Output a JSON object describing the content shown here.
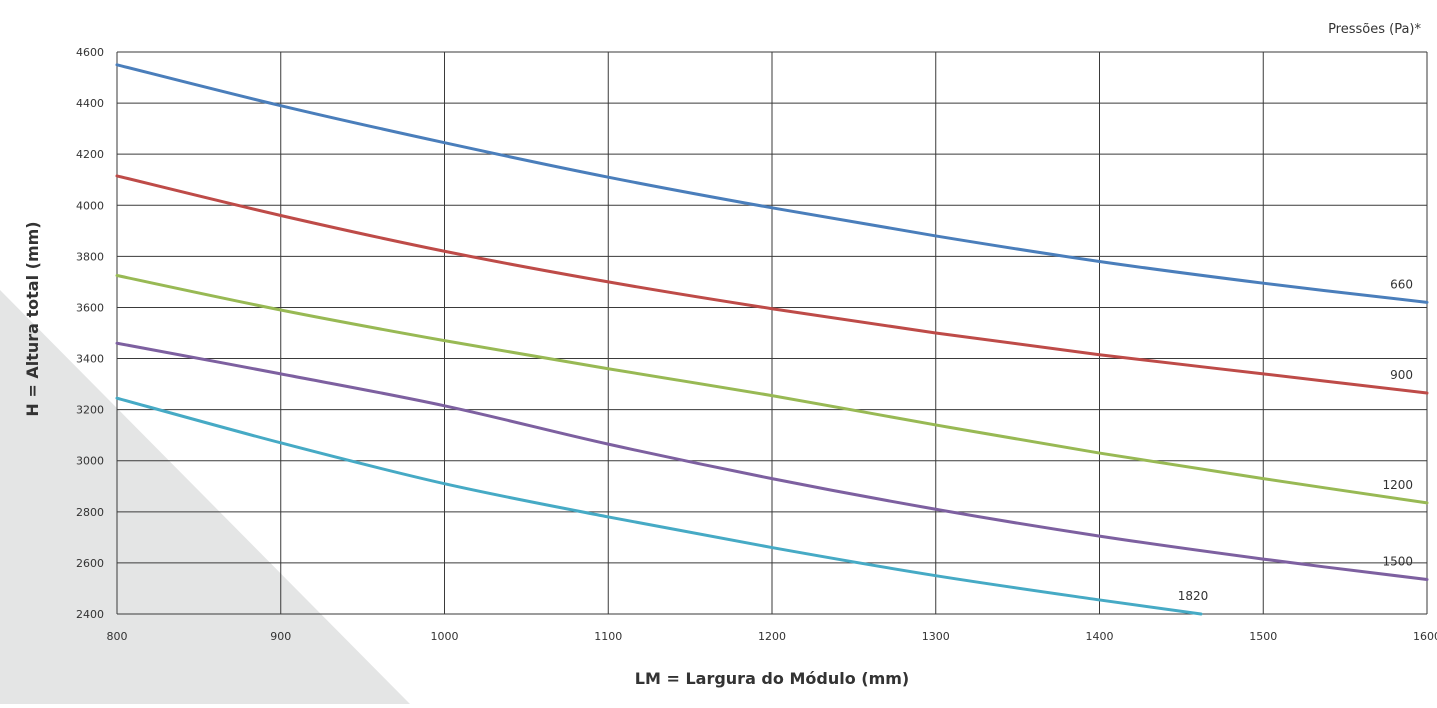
{
  "chart_data": {
    "type": "line",
    "title": "",
    "legend_title": "Pressões (Pa)*",
    "legend_placement": "top-right",
    "xlabel": "LM = Largura do Módulo (mm)",
    "ylabel": "H = Altura total (mm)",
    "xlim": [
      800,
      1600
    ],
    "ylim": [
      2400,
      4600
    ],
    "grid": true,
    "xticks": [
      800,
      900,
      1000,
      1100,
      1200,
      1300,
      1400,
      1500,
      1600
    ],
    "yticks": [
      2400,
      2600,
      2800,
      3000,
      3200,
      3400,
      3600,
      3800,
      4000,
      4200,
      4400,
      4600
    ],
    "x": [
      800,
      900,
      1000,
      1100,
      1200,
      1300,
      1400,
      1500,
      1600
    ],
    "series": [
      {
        "name": "660",
        "color": "#4a7ebb",
        "x": [
          800,
          900,
          1000,
          1100,
          1200,
          1300,
          1400,
          1500,
          1600
        ],
        "values": [
          4550,
          4390,
          4245,
          4110,
          3990,
          3880,
          3780,
          3695,
          3620
        ]
      },
      {
        "name": "900",
        "color": "#be4b48",
        "x": [
          800,
          900,
          1000,
          1100,
          1200,
          1300,
          1400,
          1500,
          1600
        ],
        "values": [
          4115,
          3960,
          3820,
          3700,
          3595,
          3500,
          3415,
          3340,
          3265
        ]
      },
      {
        "name": "1200",
        "color": "#98b954",
        "x": [
          800,
          900,
          1000,
          1100,
          1200,
          1300,
          1400,
          1500,
          1600
        ],
        "values": [
          3725,
          3590,
          3470,
          3360,
          3255,
          3140,
          3030,
          2930,
          2835
        ]
      },
      {
        "name": "1500",
        "color": "#7d60a0",
        "x": [
          800,
          900,
          1000,
          1100,
          1200,
          1300,
          1400,
          1500,
          1600
        ],
        "values": [
          3460,
          3340,
          3215,
          3065,
          2930,
          2810,
          2705,
          2615,
          2535
        ]
      },
      {
        "name": "1820",
        "color": "#46aac5",
        "x": [
          800,
          900,
          1000,
          1100,
          1200,
          1300,
          1400,
          1462
        ],
        "values": [
          3245,
          3070,
          2910,
          2780,
          2660,
          2550,
          2455,
          2400
        ]
      }
    ]
  }
}
